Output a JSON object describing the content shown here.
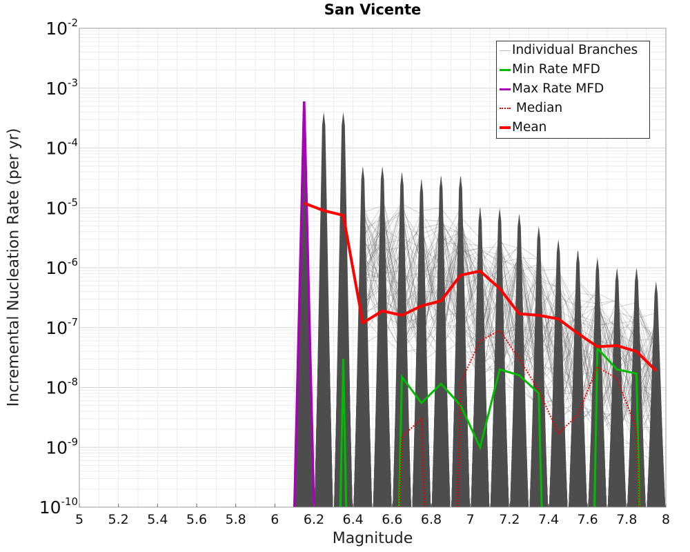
{
  "chart_data": {
    "type": "line",
    "title": "San Vicente",
    "xlabel": "Magnitude",
    "ylabel": "Incremental Nucleation Rate (per yr)",
    "y_scale": "log",
    "xlim": [
      5,
      8
    ],
    "ylim": [
      1e-10,
      0.01
    ],
    "x_ticks": [
      "5",
      "5.2",
      "5.4",
      "5.6",
      "5.8",
      "6",
      "6.2",
      "6.4",
      "6.6",
      "6.8",
      "7",
      "7.2",
      "7.4",
      "7.6",
      "7.8",
      "8"
    ],
    "y_tick_exponents": [
      "-10",
      "-9",
      "-8",
      "-7",
      "-6",
      "-5",
      "-4",
      "-3",
      "-2"
    ],
    "y_tick_base": "10",
    "grid": true,
    "legend_position": "top-right",
    "series": [
      {
        "name": "Individual Branches",
        "style": "thin gray lines (many branches)",
        "x": [
          6.15,
          6.25,
          6.35,
          6.45,
          6.55,
          6.65,
          6.75,
          6.85,
          6.95,
          7.05,
          7.15,
          7.25,
          7.35,
          7.45,
          7.55,
          7.65,
          7.75,
          7.85,
          7.95
        ],
        "peak_values": [
          0.0006,
          0.0004,
          0.0004,
          5e-05,
          5e-05,
          4e-05,
          3e-05,
          3.5e-05,
          3.5e-05,
          1e-05,
          1e-05,
          8e-06,
          5e-06,
          3e-06,
          2e-06,
          1.5e-06,
          1e-06,
          1e-06,
          6e-07
        ]
      },
      {
        "name": "Min Rate MFD",
        "color": "#00bb00",
        "x": [
          6.35,
          6.65,
          6.75,
          6.85,
          6.95,
          7.05,
          7.15,
          7.25,
          7.35,
          7.65,
          7.75,
          7.85
        ],
        "values": [
          3e-08,
          1.5e-08,
          5.5e-09,
          1.15e-08,
          5e-09,
          1e-09,
          2e-08,
          1.6e-08,
          8e-09,
          4.5e-08,
          2e-08,
          1.7e-08
        ]
      },
      {
        "name": "Max Rate MFD",
        "color": "#aa00bb",
        "x": [
          6.15
        ],
        "values": [
          0.0006
        ]
      },
      {
        "name": "Median",
        "color": "#ee0000",
        "x": [
          6.65,
          6.75,
          6.95,
          7.05,
          7.15,
          7.25,
          7.35,
          7.45,
          7.55,
          7.65,
          7.75,
          7.85
        ],
        "values": [
          1.5e-09,
          3e-09,
          1.2e-08,
          6e-08,
          9e-08,
          3e-08,
          9e-09,
          1.7e-09,
          3.5e-09,
          2.2e-08,
          1.4e-08,
          2e-09
        ]
      },
      {
        "name": "Mean",
        "color": "#ff0000",
        "x": [
          6.15,
          6.25,
          6.35,
          6.45,
          6.55,
          6.65,
          6.75,
          6.85,
          6.95,
          7.05,
          7.15,
          7.25,
          7.35,
          7.45,
          7.55,
          7.65,
          7.75,
          7.85,
          7.95
        ],
        "values": [
          1.2e-05,
          9e-06,
          7.5e-06,
          1.2e-07,
          1.9e-07,
          1.6e-07,
          2.3e-07,
          2.8e-07,
          7.5e-07,
          8.8e-07,
          4.5e-07,
          1.7e-07,
          1.6e-07,
          1.4e-07,
          8e-08,
          4.8e-08,
          5e-08,
          4e-08,
          1.9e-08
        ]
      }
    ]
  },
  "legend": {
    "items": [
      {
        "label": "Individual Branches",
        "color": "#bbbbbb",
        "style": "solid-thin"
      },
      {
        "label": "Min Rate MFD",
        "color": "#00bb00",
        "style": "solid"
      },
      {
        "label": "Max Rate MFD",
        "color": "#aa00bb",
        "style": "solid"
      },
      {
        "label": " Median",
        "color": "#ee0000",
        "style": "dotted"
      },
      {
        "label": "Mean",
        "color": "#ff0000",
        "style": "solid-thick"
      }
    ]
  }
}
